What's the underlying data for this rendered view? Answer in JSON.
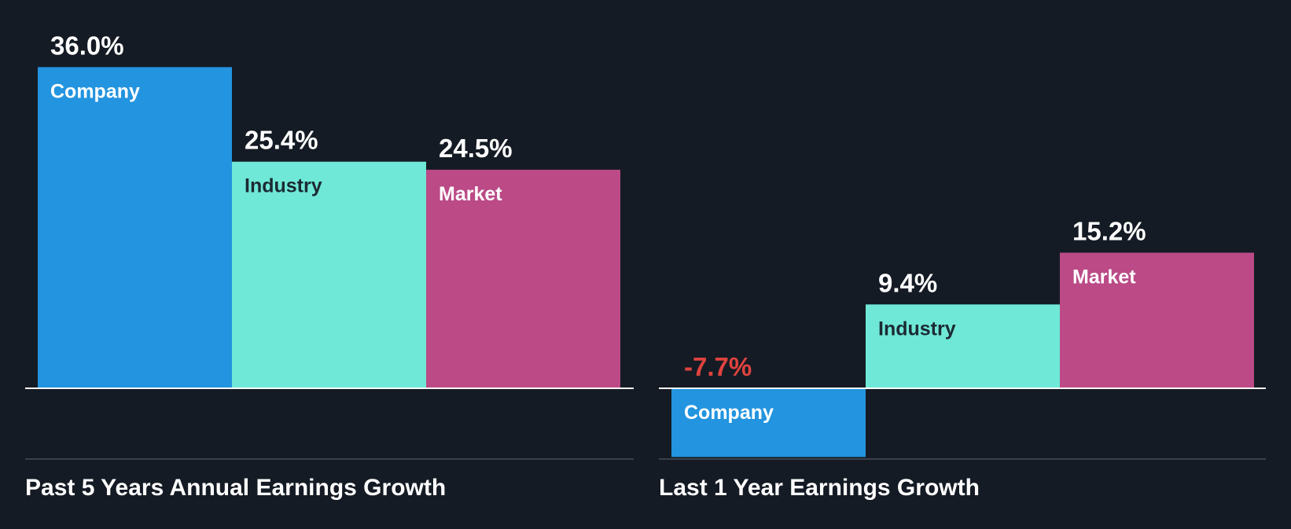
{
  "colors": {
    "background": "#151b24",
    "company": "#2394df",
    "industry": "#6fe8d7",
    "market": "#bb4a87",
    "axis": "#ffffff",
    "divider": "#3a414c",
    "text_light": "#ffffff",
    "text_dark": "#1c2a33",
    "negative": "#e0433f"
  },
  "chart_data": [
    {
      "type": "bar",
      "title": "Past 5 Years Annual Earnings Growth",
      "categories": [
        "Company",
        "Industry",
        "Market"
      ],
      "values": [
        36.0,
        25.4,
        24.5
      ],
      "value_labels": [
        "36.0%",
        "25.4%",
        "24.5%"
      ],
      "unit": "%",
      "xlabel": "",
      "ylabel": "",
      "ylim": [
        -7.95,
        37.2
      ],
      "grid": false,
      "legend": "none"
    },
    {
      "type": "bar",
      "title": "Last 1 Year Earnings Growth",
      "categories": [
        "Company",
        "Industry",
        "Market"
      ],
      "values": [
        -7.7,
        9.4,
        15.2
      ],
      "value_labels": [
        "-7.7%",
        "9.4%",
        "15.2%"
      ],
      "unit": "%",
      "xlabel": "",
      "ylabel": "",
      "ylim": [
        -7.95,
        37.2
      ],
      "grid": false,
      "legend": "none"
    }
  ]
}
